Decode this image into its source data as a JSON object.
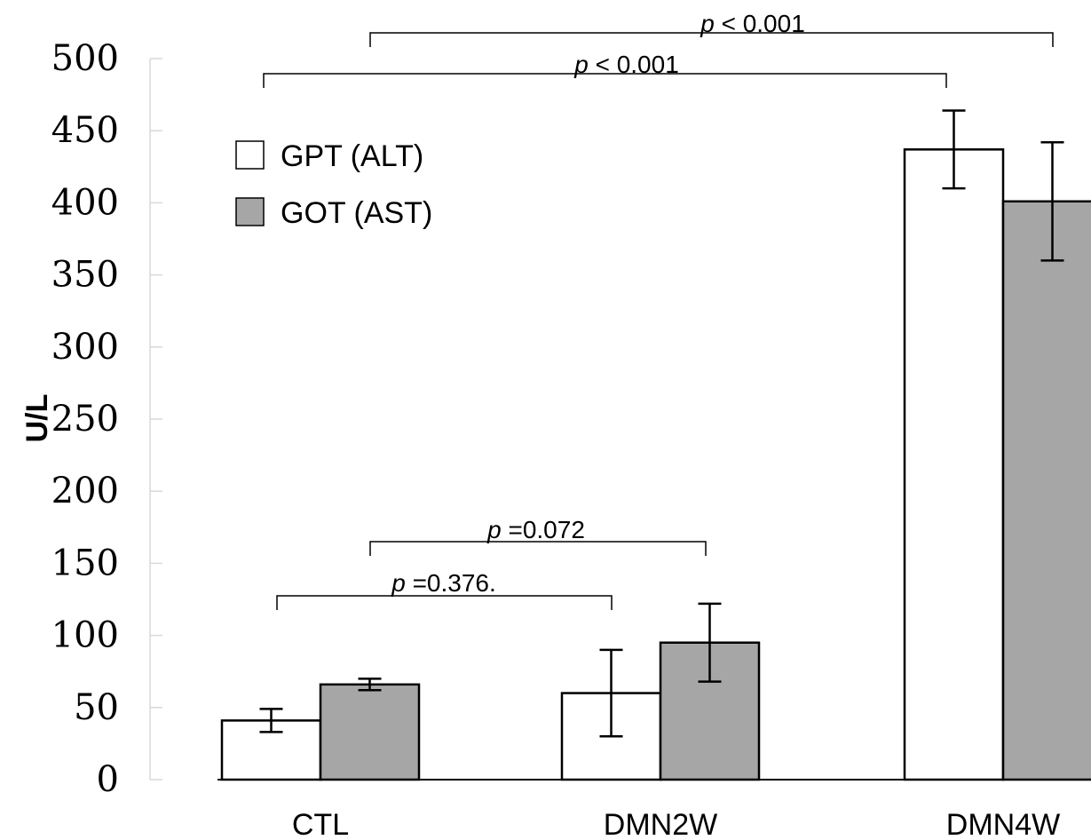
{
  "chart_data": {
    "type": "bar",
    "title": "",
    "xlabel": "",
    "ylabel": "U/L",
    "ylim": [
      0,
      500
    ],
    "yticks": [
      "0",
      "50",
      "100",
      "150",
      "200",
      "250",
      "300",
      "350",
      "400",
      "450",
      "500"
    ],
    "categories": [
      "CTL",
      "DMN2W",
      "DMN4W"
    ],
    "grid": false,
    "legend_position": "top-left",
    "series": [
      {
        "name": "GPT (ALT)",
        "color": "#ffffff",
        "values": [
          41,
          60,
          437
        ],
        "errors": [
          8,
          30,
          27
        ]
      },
      {
        "name": "GOT (AST)",
        "color": "#a6a6a6",
        "values": [
          66,
          95,
          401
        ],
        "errors": [
          4,
          27,
          41
        ]
      }
    ],
    "annotations": [
      {
        "from": {
          "category": 0,
          "series": 0
        },
        "to": {
          "category": 1,
          "series": 0
        },
        "p": "p",
        "text": " =0.376."
      },
      {
        "from": {
          "category": 0,
          "series": 1
        },
        "to": {
          "category": 1,
          "series": 1
        },
        "p": "p",
        "text": " =0.072"
      },
      {
        "from": {
          "category": 0,
          "series": 0
        },
        "to": {
          "category": 2,
          "series": 0
        },
        "p": "p",
        "text": " < 0.001"
      },
      {
        "from": {
          "category": 0,
          "series": 1
        },
        "to": {
          "category": 2,
          "series": 1
        },
        "p": "p",
        "text": " < 0.001"
      }
    ]
  }
}
